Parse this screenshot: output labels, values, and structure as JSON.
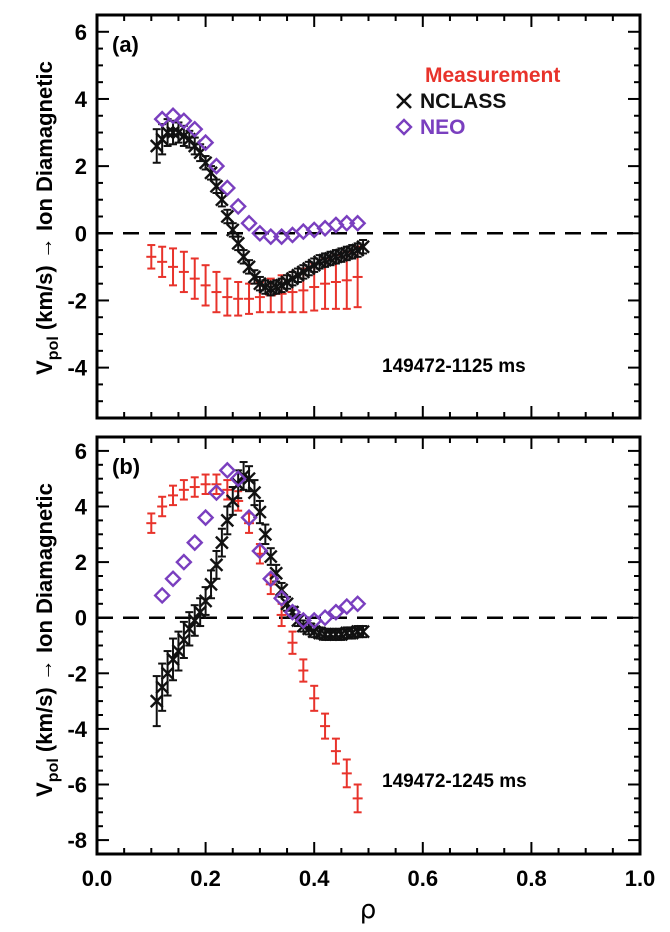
{
  "colors": {
    "measurement": "#e8332b",
    "nclass": "#111111",
    "neo": "#7a3fbf",
    "axis": "#000000"
  },
  "chart_data": [
    {
      "type": "scatter",
      "panel_label": "(a)",
      "annotation": "149472-1125 ms",
      "ylabel": "V_pol (km/s) → Ion Diamagnetic",
      "ylabel_parts": {
        "main": "V",
        "sub": "pol",
        "rest": " (km/s) → Ion Diamagnetic"
      },
      "xlim": [
        0.0,
        1.0
      ],
      "ylim": [
        -5.5,
        6.5
      ],
      "yticks": [
        -4,
        -2,
        0,
        2,
        4,
        6
      ],
      "yticklabels": [
        "-4",
        "-2",
        "0",
        "2",
        "4",
        "6"
      ],
      "zero_line": "dashed",
      "legend": {
        "placement": "top-right",
        "entries": [
          {
            "series": "Measurement",
            "label": "Measurement",
            "marker": "none"
          },
          {
            "series": "NCLASS",
            "label": "NCLASS",
            "marker": "x"
          },
          {
            "series": "NEO",
            "label": "NEO",
            "marker": "diamond"
          }
        ]
      },
      "series": [
        {
          "name": "Measurement",
          "marker": "errorbar",
          "x": [
            0.1,
            0.12,
            0.14,
            0.16,
            0.18,
            0.2,
            0.22,
            0.24,
            0.26,
            0.28,
            0.3,
            0.32,
            0.34,
            0.36,
            0.38,
            0.4,
            0.42,
            0.44,
            0.46,
            0.48
          ],
          "y": [
            -0.7,
            -0.85,
            -1.0,
            -1.15,
            -1.35,
            -1.55,
            -1.75,
            -1.9,
            -1.95,
            -1.95,
            -1.9,
            -1.85,
            -1.8,
            -1.75,
            -1.7,
            -1.6,
            -1.5,
            -1.45,
            -1.4,
            -1.3
          ],
          "err": [
            0.35,
            0.45,
            0.55,
            0.6,
            0.6,
            0.6,
            0.6,
            0.55,
            0.5,
            0.45,
            0.45,
            0.5,
            0.55,
            0.6,
            0.65,
            0.7,
            0.75,
            0.8,
            0.85,
            0.9
          ]
        },
        {
          "name": "NCLASS",
          "marker": "x",
          "x": [
            0.11,
            0.12,
            0.13,
            0.14,
            0.15,
            0.16,
            0.17,
            0.18,
            0.19,
            0.2,
            0.21,
            0.22,
            0.23,
            0.24,
            0.25,
            0.26,
            0.27,
            0.28,
            0.29,
            0.3,
            0.31,
            0.32,
            0.33,
            0.34,
            0.35,
            0.36,
            0.37,
            0.38,
            0.39,
            0.4,
            0.41,
            0.42,
            0.43,
            0.44,
            0.45,
            0.46,
            0.47,
            0.48,
            0.49
          ],
          "y": [
            2.6,
            2.8,
            3.0,
            3.0,
            3.0,
            2.9,
            2.8,
            2.6,
            2.4,
            2.1,
            1.8,
            1.4,
            1.0,
            0.5,
            0.1,
            -0.3,
            -0.7,
            -1.0,
            -1.3,
            -1.5,
            -1.6,
            -1.65,
            -1.6,
            -1.55,
            -1.45,
            -1.35,
            -1.25,
            -1.15,
            -1.05,
            -0.95,
            -0.85,
            -0.8,
            -0.75,
            -0.7,
            -0.65,
            -0.6,
            -0.55,
            -0.5,
            -0.4
          ],
          "err": [
            0.5,
            0.45,
            0.4,
            0.35,
            0.3,
            0.3,
            0.25,
            0.25,
            0.25,
            0.2,
            0.2,
            0.2,
            0.2,
            0.2,
            0.2,
            0.2,
            0.2,
            0.2,
            0.2,
            0.2,
            0.2,
            0.2,
            0.2,
            0.2,
            0.2,
            0.2,
            0.2,
            0.2,
            0.2,
            0.2,
            0.2,
            0.2,
            0.2,
            0.2,
            0.2,
            0.2,
            0.2,
            0.2,
            0.2
          ]
        },
        {
          "name": "NEO",
          "marker": "diamond",
          "x": [
            0.12,
            0.14,
            0.16,
            0.18,
            0.2,
            0.22,
            0.24,
            0.26,
            0.28,
            0.3,
            0.32,
            0.34,
            0.36,
            0.38,
            0.4,
            0.42,
            0.44,
            0.46,
            0.48
          ],
          "y": [
            3.4,
            3.5,
            3.35,
            3.1,
            2.7,
            2.0,
            1.35,
            0.8,
            0.3,
            0.0,
            -0.1,
            -0.1,
            -0.05,
            0.05,
            0.1,
            0.15,
            0.25,
            0.3,
            0.3
          ]
        }
      ]
    },
    {
      "type": "scatter",
      "panel_label": "(b)",
      "annotation": "149472-1245 ms",
      "ylabel": "V_pol (km/s) → Ion Diamagnetic",
      "ylabel_parts": {
        "main": "V",
        "sub": "pol",
        "rest": " (km/s) → Ion Diamagnetic"
      },
      "xlabel": "ρ",
      "xlim": [
        0.0,
        1.0
      ],
      "ylim": [
        -8.5,
        6.5
      ],
      "xticks": [
        0.0,
        0.2,
        0.4,
        0.6,
        0.8,
        1.0
      ],
      "xticklabels": [
        "0.0",
        "0.2",
        "0.4",
        "0.6",
        "0.8",
        "1.0"
      ],
      "yticks": [
        -8,
        -6,
        -4,
        -2,
        0,
        2,
        4,
        6
      ],
      "yticklabels": [
        "-8",
        "-6",
        "-4",
        "-2",
        "0",
        "2",
        "4",
        "6"
      ],
      "zero_line": "dashed",
      "series": [
        {
          "name": "Measurement",
          "marker": "errorbar",
          "x": [
            0.1,
            0.12,
            0.14,
            0.16,
            0.18,
            0.2,
            0.22,
            0.24,
            0.26,
            0.28,
            0.3,
            0.32,
            0.34,
            0.36,
            0.38,
            0.4,
            0.42,
            0.44,
            0.46,
            0.48
          ],
          "y": [
            3.4,
            4.0,
            4.4,
            4.6,
            4.7,
            4.8,
            4.8,
            4.6,
            4.2,
            3.4,
            2.3,
            1.2,
            0.1,
            -0.9,
            -1.9,
            -2.9,
            -3.9,
            -4.8,
            -5.6,
            -6.5
          ],
          "err": [
            0.35,
            0.35,
            0.35,
            0.35,
            0.35,
            0.35,
            0.35,
            0.35,
            0.35,
            0.35,
            0.35,
            0.35,
            0.4,
            0.4,
            0.4,
            0.45,
            0.45,
            0.45,
            0.5,
            0.5
          ]
        },
        {
          "name": "NCLASS",
          "marker": "x",
          "x": [
            0.11,
            0.12,
            0.13,
            0.14,
            0.15,
            0.16,
            0.17,
            0.18,
            0.19,
            0.2,
            0.21,
            0.22,
            0.23,
            0.24,
            0.25,
            0.26,
            0.27,
            0.28,
            0.29,
            0.3,
            0.31,
            0.32,
            0.33,
            0.34,
            0.35,
            0.36,
            0.37,
            0.38,
            0.39,
            0.4,
            0.41,
            0.42,
            0.43,
            0.44,
            0.45,
            0.46,
            0.47,
            0.48,
            0.49
          ],
          "y": [
            -3.0,
            -2.5,
            -2.0,
            -1.5,
            -1.2,
            -0.8,
            -0.4,
            -0.1,
            0.2,
            0.6,
            1.2,
            1.9,
            2.7,
            3.5,
            4.2,
            4.8,
            5.1,
            5.0,
            4.5,
            3.8,
            3.0,
            2.2,
            1.6,
            1.0,
            0.5,
            0.2,
            -0.1,
            -0.3,
            -0.4,
            -0.5,
            -0.55,
            -0.6,
            -0.6,
            -0.6,
            -0.6,
            -0.55,
            -0.55,
            -0.5,
            -0.5
          ],
          "err": [
            0.9,
            0.85,
            0.8,
            0.75,
            0.7,
            0.65,
            0.6,
            0.55,
            0.5,
            0.5,
            0.5,
            0.5,
            0.5,
            0.5,
            0.5,
            0.5,
            0.5,
            0.45,
            0.45,
            0.4,
            0.35,
            0.3,
            0.3,
            0.25,
            0.25,
            0.2,
            0.2,
            0.2,
            0.2,
            0.2,
            0.2,
            0.2,
            0.2,
            0.2,
            0.2,
            0.2,
            0.2,
            0.2,
            0.2
          ]
        },
        {
          "name": "NEO",
          "marker": "diamond",
          "x": [
            0.12,
            0.14,
            0.16,
            0.18,
            0.2,
            0.22,
            0.24,
            0.26,
            0.28,
            0.3,
            0.32,
            0.34,
            0.36,
            0.38,
            0.4,
            0.42,
            0.44,
            0.46,
            0.48
          ],
          "y": [
            0.8,
            1.4,
            2.0,
            2.7,
            3.6,
            4.5,
            5.3,
            5.0,
            3.6,
            2.4,
            1.4,
            0.7,
            0.2,
            -0.1,
            -0.1,
            0.0,
            0.2,
            0.4,
            0.5
          ]
        }
      ]
    }
  ]
}
